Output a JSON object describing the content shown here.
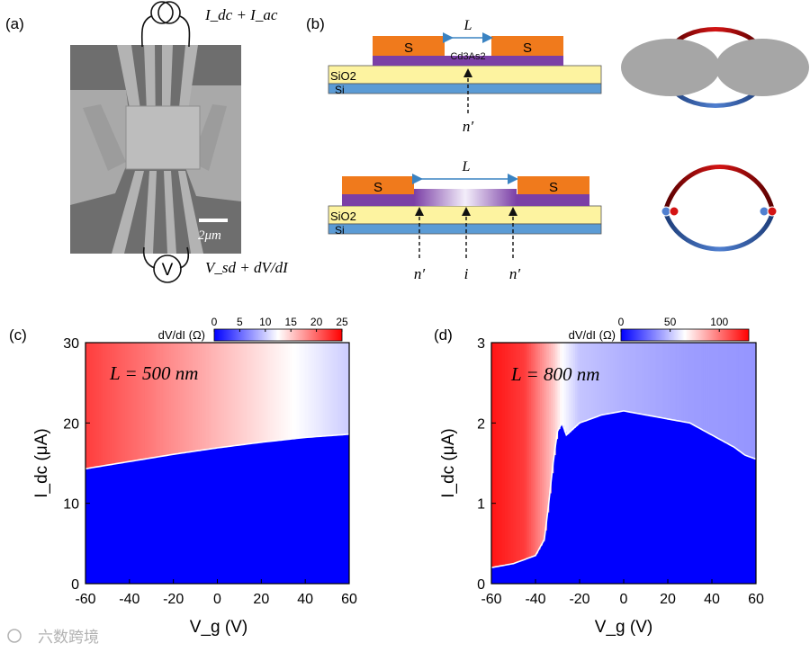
{
  "figure": {
    "panel_labels": {
      "a": "(a)",
      "b": "(b)",
      "c": "(c)",
      "d": "(d)"
    },
    "panel_a": {
      "top_source_label": "I_dc + I_ac",
      "bottom_meter_symbol": "V",
      "bottom_measure_label": "V_sd + dV/dI",
      "scale_bar_label": "2μm"
    },
    "panel_b": {
      "device_top": {
        "length_label": "L",
        "electrode_left": "S",
        "electrode_right": "S",
        "channel_label": "Cd3As2",
        "oxide_label": "SiO2",
        "substrate_label": "Si",
        "arrow_label": "n′"
      },
      "device_bottom": {
        "length_label": "L",
        "electrode_left": "S",
        "electrode_right": "S",
        "oxide_label": "SiO2",
        "substrate_label": "Si",
        "arrow_labels": [
          "n′",
          "i",
          "n′"
        ]
      }
    },
    "watermark": "六数跨境",
    "colors": {
      "low": "#0000ff",
      "mid": "#ffffff",
      "high": "#ff0000",
      "electrode": "#f07a1c",
      "channel": "#7b3fa6",
      "oxide": "#fdf3a0",
      "silicon": "#5b9bd5"
    }
  },
  "chart_data": [
    {
      "type": "heatmap",
      "panel": "(c)",
      "annotation": "L = 500 nm",
      "xlabel": "V_g (V)",
      "ylabel": "I_dc (μA)",
      "xlim": [
        -60,
        60
      ],
      "ylim": [
        0,
        30
      ],
      "xticks": [
        -60,
        -40,
        -20,
        0,
        20,
        40,
        60
      ],
      "yticks": [
        0,
        10,
        20,
        30
      ],
      "colorbar_label": "dV/dI (Ω)",
      "colorbar_range": [
        0,
        25
      ],
      "colorbar_ticks": [
        0,
        5,
        10,
        15,
        20,
        25
      ],
      "switching_current": {
        "Vg": [
          -60,
          -40,
          -20,
          0,
          20,
          40,
          60
        ],
        "Idc": [
          14.3,
          15.2,
          16.1,
          16.9,
          17.6,
          18.2,
          18.6
        ]
      },
      "resistance_above_boundary": {
        "Vg": [
          -60,
          -30,
          0,
          30,
          60
        ],
        "dVdI": [
          22,
          19,
          16,
          13,
          10
        ]
      },
      "resistance_below_boundary": 0
    },
    {
      "type": "heatmap",
      "panel": "(d)",
      "annotation": "L = 800 nm",
      "xlabel": "V_g (V)",
      "ylabel": "I_dc (μA)",
      "xlim": [
        -60,
        60
      ],
      "ylim": [
        0,
        3
      ],
      "xticks": [
        -60,
        -40,
        -20,
        0,
        20,
        40,
        60
      ],
      "yticks": [
        0,
        1,
        2,
        3
      ],
      "colorbar_label": "dV/dI (Ω)",
      "colorbar_range": [
        0,
        130
      ],
      "colorbar_ticks": [
        0,
        50,
        100
      ],
      "switching_current": {
        "Vg": [
          -60,
          -50,
          -40,
          -36,
          -34,
          -32,
          -30,
          -28,
          -26,
          -20,
          -10,
          0,
          10,
          20,
          30,
          40,
          50,
          55,
          60
        ],
        "Idc": [
          0.2,
          0.25,
          0.35,
          0.55,
          1.0,
          1.5,
          1.9,
          2.0,
          1.85,
          2.0,
          2.1,
          2.15,
          2.1,
          2.05,
          2.0,
          1.85,
          1.7,
          1.6,
          1.55
        ]
      },
      "resistance_above_boundary": {
        "Vg": [
          -60,
          -45,
          -32,
          -28,
          -20,
          0,
          30,
          60
        ],
        "dVdI": [
          125,
          115,
          80,
          65,
          50,
          45,
          40,
          38
        ]
      },
      "resistance_below_boundary": 0
    }
  ]
}
